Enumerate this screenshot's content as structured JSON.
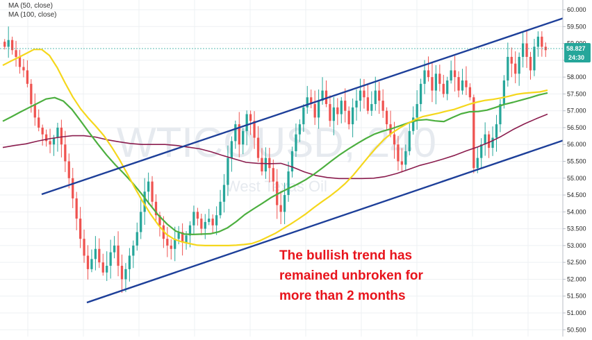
{
  "chart_data": {
    "type": "candlestick",
    "symbol_watermark": "WTICOUSD, 240",
    "subtitle_watermark": "West Texas Oil",
    "legend": [
      {
        "label": "MA (50, close)",
        "color": "#f5d71c"
      },
      {
        "label": "MA (100, close)",
        "color": "#4caf3f"
      }
    ],
    "annotation": [
      "The bullish trend has",
      "remained unbroken for",
      "more than 2 months"
    ],
    "y_axis": {
      "position": "right",
      "ylim": [
        50.5,
        60.25
      ],
      "ticks": [
        "60.000",
        "59.500",
        "59.000",
        "58.500",
        "58.000",
        "57.500",
        "57.000",
        "56.500",
        "56.000",
        "55.500",
        "55.000",
        "54.500",
        "54.000",
        "53.500",
        "53.000",
        "52.500",
        "52.000",
        "51.500",
        "51.000",
        "50.500"
      ]
    },
    "price_label": {
      "value": "58.827",
      "countdown": "24:30",
      "color": "#26a69a"
    },
    "grid": true,
    "close_series": [
      58.9,
      59.1,
      58.8,
      58.6,
      58.3,
      58.2,
      57.8,
      57.2,
      56.8,
      56.5,
      56.3,
      56.1,
      56.0,
      56.2,
      56.5,
      56.0,
      55.5,
      55.0,
      54.4,
      53.8,
      53.2,
      52.7,
      52.3,
      52.6,
      52.9,
      52.5,
      52.2,
      52.4,
      52.8,
      53.0,
      52.4,
      52.0,
      52.3,
      52.7,
      53.0,
      53.4,
      54.0,
      54.6,
      54.9,
      54.3,
      53.9,
      53.6,
      53.2,
      53.0,
      52.9,
      53.2,
      53.4,
      53.1,
      53.3,
      53.6,
      54.0,
      53.8,
      53.5,
      53.7,
      53.8,
      53.6,
      53.9,
      54.3,
      54.8,
      55.6,
      56.1,
      56.6,
      56.0,
      56.4,
      56.9,
      56.7,
      56.2,
      55.6,
      55.2,
      55.6,
      55.3,
      54.9,
      54.2,
      54.0,
      54.5,
      55.2,
      55.8,
      56.3,
      56.6,
      57.1,
      57.4,
      57.2,
      56.8,
      57.3,
      57.6,
      57.2,
      56.7,
      57.1,
      56.9,
      57.3,
      57.0,
      56.6,
      57.1,
      57.3,
      57.6,
      57.4,
      57.0,
      57.2,
      57.6,
      57.3,
      57.0,
      56.6,
      56.3,
      56.0,
      55.5,
      55.4,
      55.8,
      56.4,
      56.8,
      57.2,
      57.8,
      58.2,
      58.0,
      57.6,
      58.1,
      57.8,
      57.5,
      57.9,
      58.2,
      58.0,
      57.6,
      57.9,
      57.7,
      57.4,
      55.3,
      55.6,
      56.0,
      56.3,
      55.9,
      56.2,
      56.6,
      57.2,
      57.9,
      58.6,
      58.4,
      58.1,
      58.6,
      59.0,
      58.6,
      58.2,
      58.9,
      59.2,
      58.9,
      58.8
    ],
    "ma50": [
      58.35,
      58.47,
      58.58,
      58.7,
      58.82,
      58.82,
      58.64,
      58.28,
      57.83,
      57.41,
      57.06,
      56.78,
      56.53,
      56.26,
      55.92,
      55.55,
      55.13,
      54.7,
      54.3,
      53.93,
      53.61,
      53.34,
      53.19,
      53.11,
      53.06,
      53.01,
      53.0,
      53.0,
      53.0,
      53.0,
      53.01,
      53.03,
      53.06,
      53.14,
      53.25,
      53.36,
      53.5,
      53.64,
      53.79,
      53.95,
      54.13,
      54.3,
      54.46,
      54.64,
      54.84,
      55.08,
      55.36,
      55.64,
      55.91,
      56.15,
      56.34,
      56.49,
      56.62,
      56.74,
      56.83,
      56.88,
      56.93,
      56.99,
      57.04,
      57.12,
      57.2,
      57.26,
      57.31,
      57.34,
      57.38,
      57.43,
      57.49,
      57.52,
      57.54,
      57.56,
      57.61
    ],
    "ma100": [
      56.69,
      56.82,
      56.96,
      57.09,
      57.22,
      57.35,
      57.39,
      57.29,
      57.04,
      56.7,
      56.35,
      56.01,
      55.69,
      55.4,
      55.14,
      54.86,
      54.55,
      54.22,
      53.9,
      53.64,
      53.43,
      53.34,
      53.33,
      53.34,
      53.35,
      53.41,
      53.53,
      53.71,
      53.92,
      54.09,
      54.25,
      54.42,
      54.56,
      54.69,
      54.81,
      54.95,
      55.12,
      55.31,
      55.51,
      55.7,
      55.87,
      56.03,
      56.18,
      56.31,
      56.4,
      56.47,
      56.56,
      56.65,
      56.72,
      56.74,
      56.7,
      56.68,
      56.8,
      56.91,
      56.97,
      56.98,
      57.02,
      57.1,
      57.19,
      57.25,
      57.32,
      57.39,
      57.47,
      57.53
    ],
    "ma200": [
      55.91,
      55.97,
      56.02,
      56.1,
      56.17,
      56.22,
      56.26,
      56.26,
      56.22,
      56.14,
      56.08,
      56.03,
      56.0,
      56.0,
      56.0,
      55.97,
      55.92,
      55.87,
      55.78,
      55.67,
      55.57,
      55.47,
      55.44,
      55.43,
      55.44,
      55.33,
      55.19,
      55.08,
      55.02,
      54.99,
      54.99,
      54.99,
      55.0,
      55.05,
      55.14,
      55.26,
      55.38,
      55.47,
      55.57,
      55.68,
      55.81,
      55.93,
      56.07,
      56.24,
      56.44,
      56.61,
      56.76,
      56.9
    ]
  }
}
